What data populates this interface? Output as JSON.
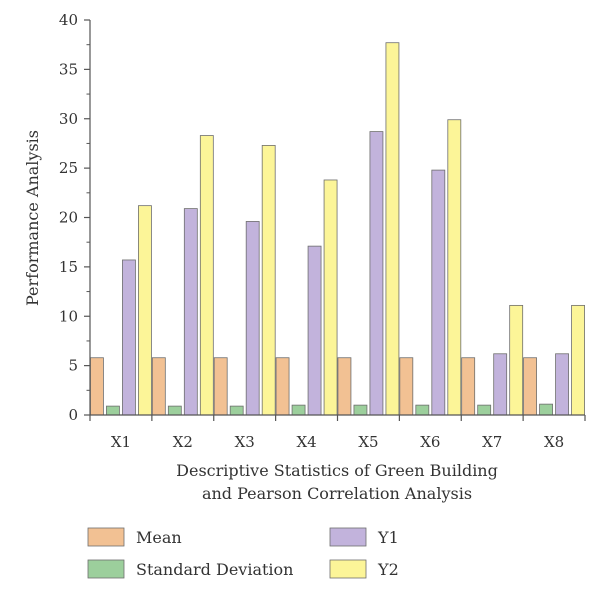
{
  "chart_data": {
    "type": "bar",
    "title": "",
    "xlabel_lines": [
      "Descriptive Statistics of Green Building",
      "and Pearson Correlation Analysis"
    ],
    "ylabel": "Performance Analysis",
    "categories": [
      "X1",
      "X2",
      "X3",
      "X4",
      "X5",
      "X6",
      "X7",
      "X8"
    ],
    "ylim": [
      0,
      40
    ],
    "yticks": [
      0,
      5,
      10,
      15,
      20,
      25,
      30,
      35,
      40
    ],
    "grid": false,
    "legend_position": "bottom",
    "series": [
      {
        "name": "Mean",
        "color": "#f2c193",
        "values": [
          5.8,
          5.8,
          5.8,
          5.8,
          5.8,
          5.8,
          5.8,
          5.8
        ]
      },
      {
        "name": "Standard Deviation",
        "color": "#9ccf9c",
        "values": [
          0.9,
          0.9,
          0.9,
          1.0,
          1.0,
          1.0,
          1.0,
          1.1
        ]
      },
      {
        "name": "Y1",
        "color": "#c2b3dc",
        "values": [
          15.7,
          20.9,
          19.6,
          17.1,
          28.7,
          24.8,
          6.2,
          6.2
        ]
      },
      {
        "name": "Y2",
        "color": "#fcf598",
        "values": [
          21.2,
          28.3,
          27.3,
          23.8,
          37.7,
          29.9,
          11.1,
          11.1
        ]
      }
    ]
  }
}
